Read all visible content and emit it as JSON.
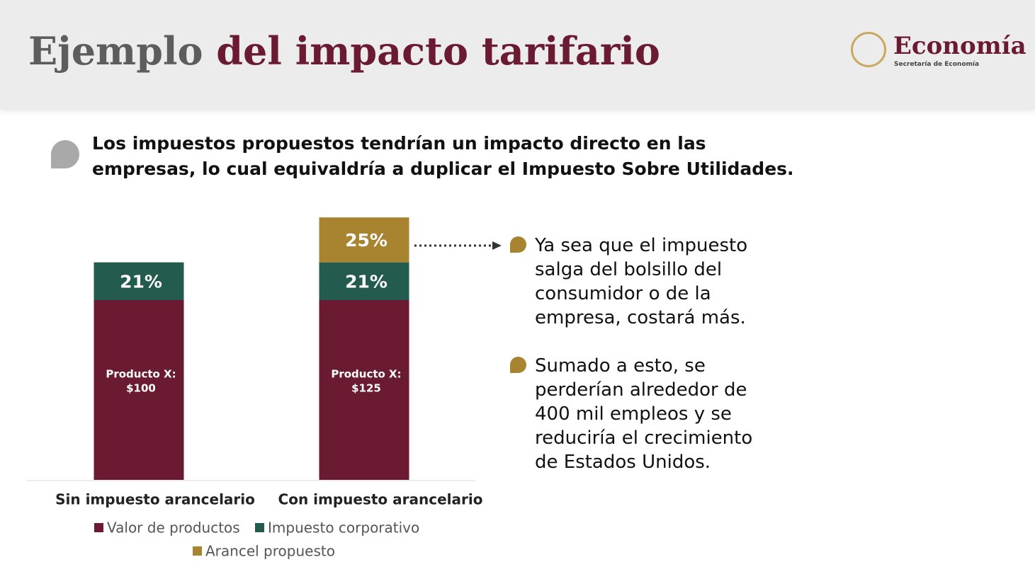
{
  "header": {
    "title_part1": "Ejemplo",
    "title_part2": "del impacto tarifario",
    "logo_name": "Economía",
    "logo_subtitle": "Secretaría de Economía"
  },
  "statement": [
    "Los impuestos propuestos tendrían un impacto directo en las",
    "empresas, lo cual equivaldría a duplicar el Impuesto Sobre Utilidades."
  ],
  "bullets": [
    [
      "Ya sea que el impuesto",
      "salga del bolsillo del",
      "consumidor o de la",
      "empresa, costará más."
    ],
    [
      "Sumado a esto, se",
      "perderían alrededor de",
      "400 mil empleos y se",
      "reduciría el crecimiento",
      "de Estados Unidos."
    ]
  ],
  "chart_data": {
    "type": "stacked_bar",
    "categories": [
      "Sin impuesto arancelario",
      "Con impuesto arancelario"
    ],
    "series": [
      {
        "name": "Valor de productos",
        "color": "#6a1b31",
        "values": [
          100,
          100
        ]
      },
      {
        "name": "Impuesto corporativo",
        "color": "#235b4e",
        "values": [
          21,
          21
        ],
        "value_labels": [
          "21%",
          "21%"
        ]
      },
      {
        "name": "Arancel propuesto",
        "color": "#a88430",
        "values": [
          null,
          25
        ],
        "value_labels": [
          null,
          "25%"
        ]
      }
    ],
    "annotations": [
      [
        "Producto X:",
        "$100"
      ],
      [
        "Producto X:",
        "$125"
      ]
    ]
  }
}
